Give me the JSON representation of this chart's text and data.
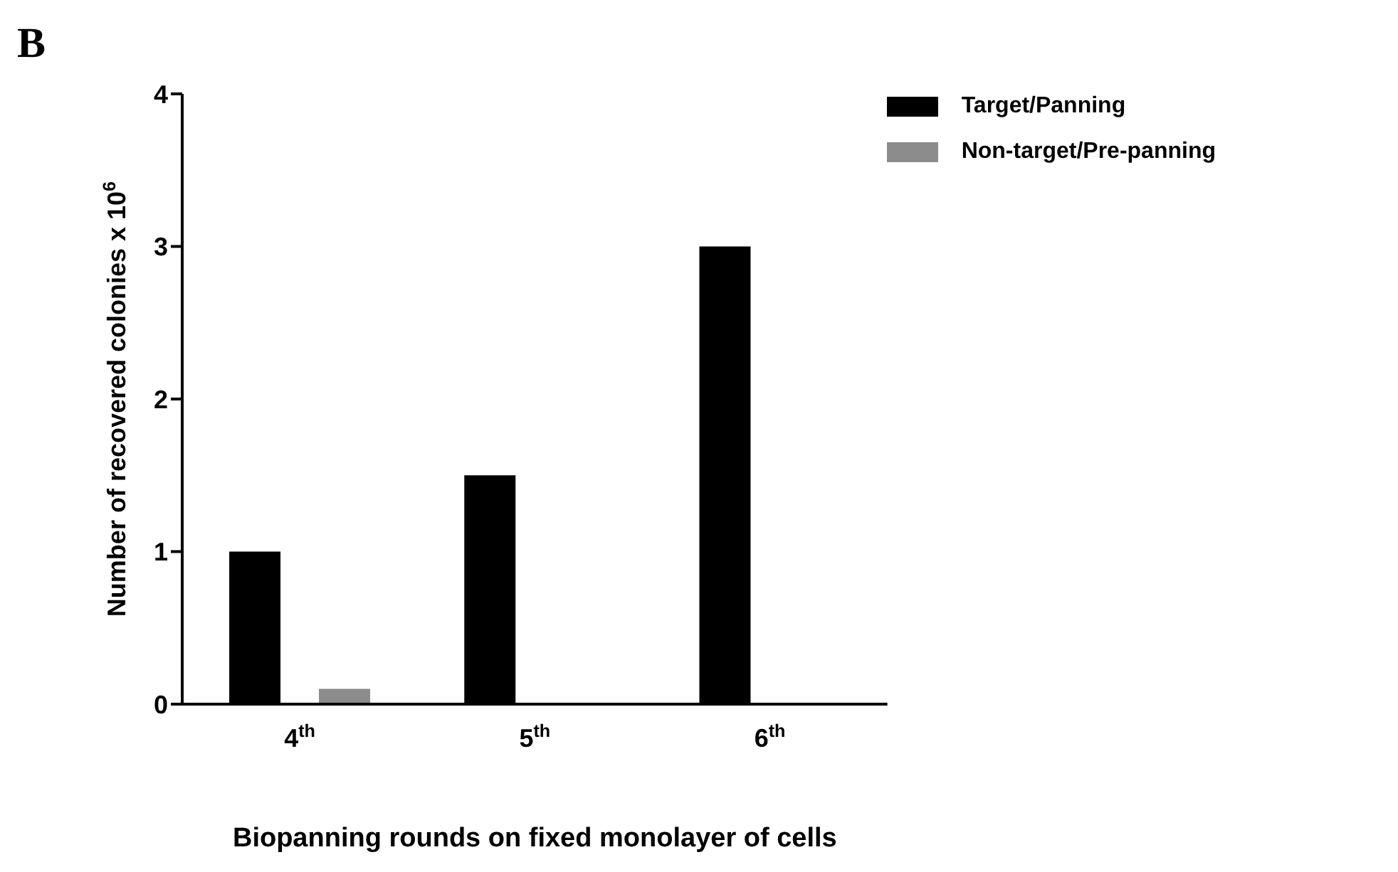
{
  "chart_data": {
    "type": "bar",
    "title": "B",
    "xlabel": "Biopanning rounds on fixed monolayer of cells",
    "ylabel": "Number of recovered colonies x 10$^{6}$",
    "categories": [
      "4$^{th}$",
      "5$^{th}$",
      "6$^{th}$"
    ],
    "series": [
      {
        "name": "Target/Panning",
        "color": "#000000",
        "values": [
          1,
          1.5,
          3
        ]
      },
      {
        "name": "Non-target/Pre-panning",
        "color": "#8c8c8c",
        "values": [
          0.1,
          0,
          0
        ]
      }
    ],
    "ylim": [
      0,
      4
    ],
    "yticks": [
      0,
      1,
      2,
      3,
      4
    ],
    "grid": false,
    "legend": "top right"
  }
}
